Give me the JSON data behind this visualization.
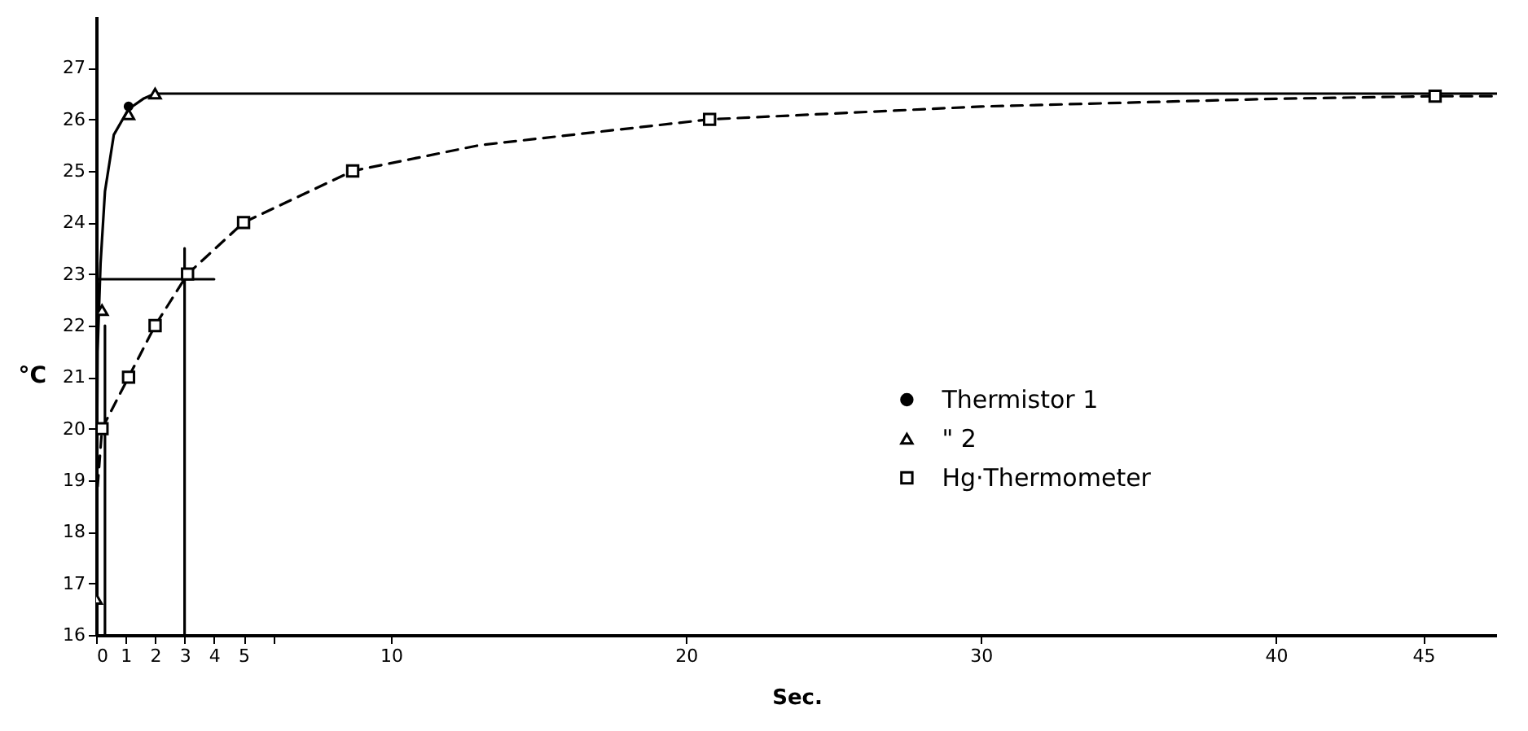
{
  "chart_data": {
    "type": "line",
    "xlabel": "Sec.",
    "ylabel": "°C",
    "xlim": [
      0,
      47.5
    ],
    "ylim": [
      16,
      28
    ],
    "xticks": [
      0,
      1,
      2,
      3,
      4,
      5,
      {
        "value": 6,
        "label": null
      },
      10,
      20,
      30,
      40,
      45
    ],
    "yticks": [
      16,
      17,
      18,
      19,
      20,
      21,
      22,
      23,
      24,
      25,
      26,
      27
    ],
    "grid": false,
    "legend": "right",
    "series": [
      {
        "type": "line",
        "color": "#000000",
        "line_style": "solid",
        "x": [
          0,
          0.05,
          0.15,
          0.3,
          0.6,
          1.1,
          1.6,
          2,
          10,
          47.5
        ],
        "values": [
          16.5,
          21.5,
          23.2,
          24.6,
          25.7,
          26.2,
          26.4,
          26.5,
          26.5,
          26.5
        ]
      },
      {
        "type": "line",
        "color": "#000000",
        "line_style": "dashed",
        "x": [
          0,
          0.2,
          1.1,
          2,
          3.1,
          5,
          8.7,
          13,
          20.8,
          30,
          40,
          45.4,
          47.5
        ],
        "values": [
          18.5,
          20,
          21,
          22,
          23,
          24,
          25,
          25.5,
          26,
          26.25,
          26.4,
          26.45,
          26.45
        ]
      },
      {
        "type": "line",
        "color": "#000000",
        "line_style": "solid",
        "x": [
          0,
          4
        ],
        "values": [
          22.9,
          22.9
        ]
      },
      {
        "type": "line",
        "color": "#000000",
        "line_style": "solid",
        "x": [
          3,
          3
        ],
        "values": [
          16,
          23.5
        ]
      },
      {
        "type": "line",
        "color": "#000000",
        "line_style": "solid",
        "x": [
          0.3,
          0.3
        ],
        "values": [
          16,
          22
        ]
      },
      {
        "type": "scatter",
        "name": "Thermistor 1",
        "marker": "circle",
        "color": "#000000",
        "x": [
          1.1
        ],
        "values": [
          26.25
        ]
      },
      {
        "type": "scatter",
        "name": "\" 2",
        "marker": "triangle",
        "color": "#000000",
        "x": [
          0,
          0.2,
          1.1,
          2
        ],
        "values": [
          16.7,
          22.3,
          26.1,
          26.5
        ]
      },
      {
        "type": "scatter",
        "name": "Hg·Thermometer",
        "marker": "square",
        "color": "#000000",
        "x": [
          0.2,
          1.1,
          2,
          3.1,
          5,
          8.7,
          20.8,
          45.4
        ],
        "values": [
          20,
          21,
          22,
          23,
          24,
          25,
          26,
          26.45
        ]
      }
    ]
  }
}
